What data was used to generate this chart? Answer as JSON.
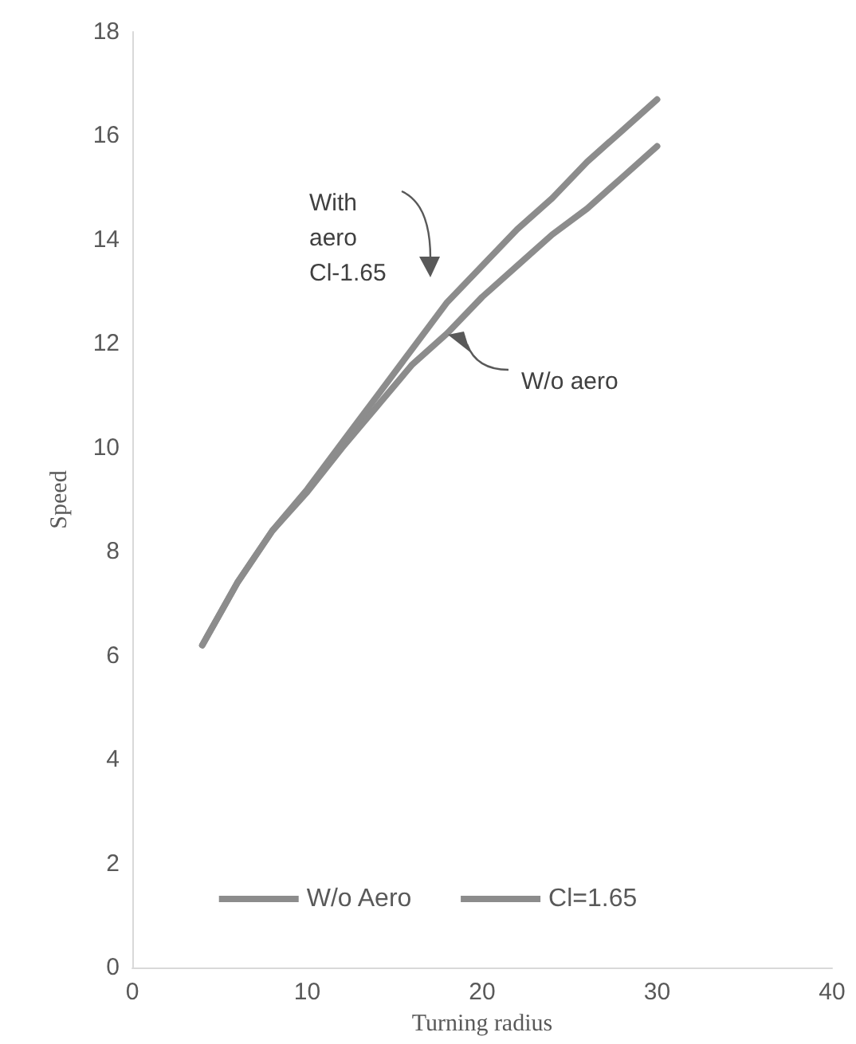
{
  "chart_data": {
    "type": "line",
    "xlabel": "Turning radius",
    "ylabel": "Speed",
    "x": [
      4,
      6,
      8,
      10,
      12,
      14,
      16,
      18,
      20,
      22,
      24,
      26,
      28,
      30
    ],
    "series": [
      {
        "name": "W/o Aero",
        "color": "#8c8c8c",
        "values": [
          6.2,
          7.4,
          8.4,
          9.15,
          10.0,
          10.8,
          11.6,
          12.2,
          12.9,
          13.5,
          14.1,
          14.6,
          15.2,
          15.8
        ]
      },
      {
        "name": "Cl=1.65",
        "color": "#8c8c8c",
        "values": [
          6.2,
          7.4,
          8.4,
          9.2,
          10.1,
          11.0,
          11.9,
          12.8,
          13.5,
          14.2,
          14.8,
          15.5,
          16.1,
          16.7
        ]
      }
    ],
    "xlim": [
      0,
      40
    ],
    "xticks": [
      0,
      10,
      20,
      30,
      40
    ],
    "ylim": [
      0,
      18
    ],
    "yticks": [
      0,
      2,
      4,
      6,
      8,
      10,
      12,
      14,
      16,
      18
    ],
    "annotations": [
      "With\naero\nCl-1.65",
      "W/o aero"
    ],
    "grid": false,
    "legend": "bottom",
    "marker": "none",
    "line_style": "solid"
  }
}
